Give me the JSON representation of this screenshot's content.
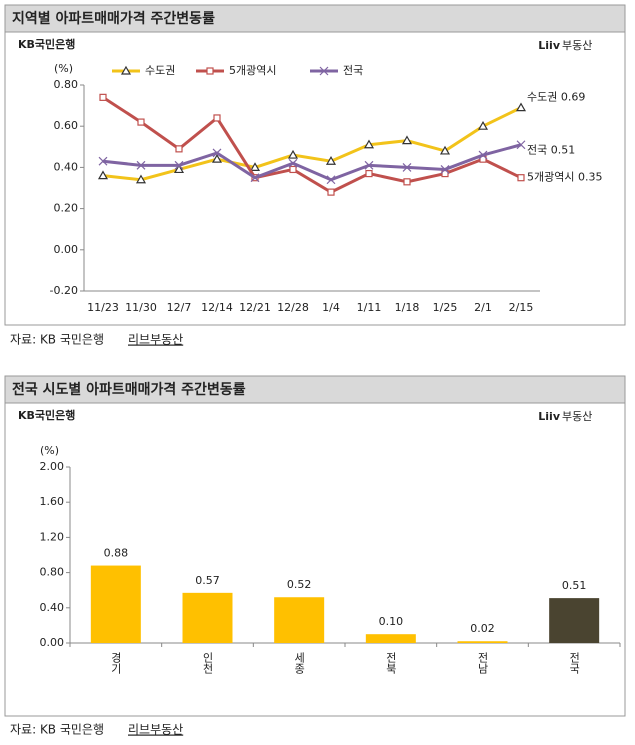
{
  "chart_data": [
    {
      "type": "line",
      "title": "지역별 아파트매매가격 주간변동률",
      "logo": "KB국민은행",
      "brand": "Liiv",
      "brand_sub": "부동산",
      "y_unit": "(%)",
      "categories": [
        "11/23",
        "11/30",
        "12/7",
        "12/14",
        "12/21",
        "12/28",
        "1/4",
        "1/11",
        "1/18",
        "1/25",
        "2/1",
        "2/15"
      ],
      "series": [
        {
          "name": "수도권",
          "color": "#f2c31a",
          "marker": "triangle",
          "end_label": "수도권 0.69",
          "values": [
            0.36,
            0.34,
            0.39,
            0.44,
            0.4,
            0.46,
            0.43,
            0.51,
            0.53,
            0.48,
            0.6,
            0.69
          ]
        },
        {
          "name": "5개광역시",
          "color": "#c0504d",
          "marker": "square",
          "end_label": "5개광역시 0.35",
          "values": [
            0.74,
            0.62,
            0.49,
            0.64,
            0.35,
            0.39,
            0.28,
            0.37,
            0.33,
            0.37,
            0.44,
            0.35
          ]
        },
        {
          "name": "전국",
          "color": "#7f64a2",
          "marker": "x",
          "end_label": "전국 0.51",
          "values": [
            0.43,
            0.41,
            0.41,
            0.47,
            0.35,
            0.42,
            0.34,
            0.41,
            0.4,
            0.39,
            0.46,
            0.51
          ]
        }
      ],
      "ylim": [
        -0.2,
        0.8
      ],
      "yticks": [
        {
          "value": -0.2,
          "label": "-0.20"
        },
        {
          "value": 0,
          "label": "0.00"
        },
        {
          "value": 0.2,
          "label": "0.20"
        },
        {
          "value": 0.4,
          "label": "0.40"
        },
        {
          "value": 0.6,
          "label": "0.60"
        },
        {
          "value": 0.8,
          "label": "0.80"
        }
      ],
      "source": "자료: KB 국민은행",
      "source_brand": "리브부동산"
    },
    {
      "type": "bar",
      "title": "전국 시도별 아파트매매가격 주간변동률",
      "logo": "KB국민은행",
      "brand": "Liiv",
      "brand_sub": "부동산",
      "y_unit": "(%)",
      "categories": [
        "경기",
        "인천",
        "세종",
        "전북",
        "전남",
        "전국"
      ],
      "values": [
        0.88,
        0.57,
        0.52,
        0.1,
        0.02,
        0.51
      ],
      "value_labels": [
        "0.88",
        "0.57",
        "0.52",
        "0.10",
        "0.02",
        "0.51"
      ],
      "colors": [
        "#ffc000",
        "#ffc000",
        "#ffc000",
        "#ffc000",
        "#ffc000",
        "#4a4430"
      ],
      "ylim": [
        0,
        2.0
      ],
      "yticks": [
        {
          "value": 0,
          "label": "0.00"
        },
        {
          "value": 0.4,
          "label": "0.40"
        },
        {
          "value": 0.8,
          "label": "0.80"
        },
        {
          "value": 1.2,
          "label": "1.20"
        },
        {
          "value": 1.6,
          "label": "1.60"
        },
        {
          "value": 2.0,
          "label": "2.00"
        }
      ],
      "source": "자료: KB 국민은행",
      "source_brand": "리브부동산"
    }
  ]
}
